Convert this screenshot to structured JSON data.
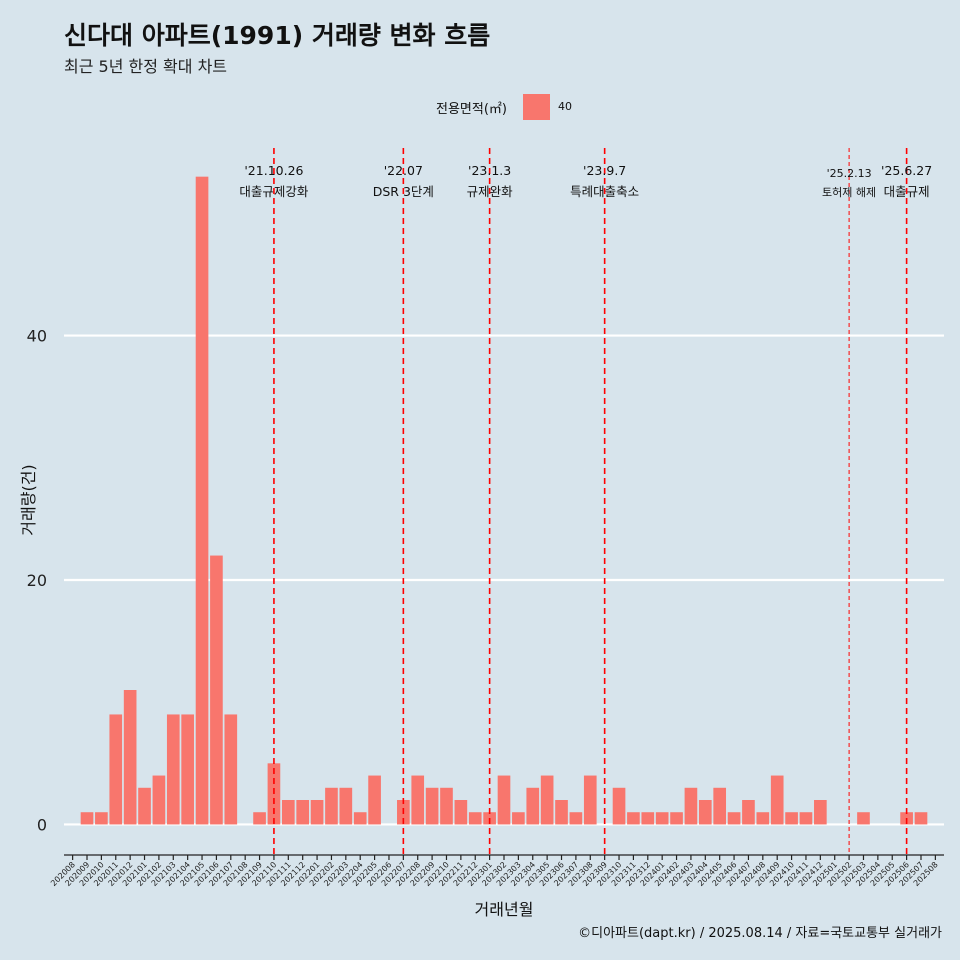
{
  "chart_data": {
    "type": "bar",
    "title": "신다대 아파트(1991) 거래량 변화 흐름",
    "subtitle": "최근 5년 한정 확대 차트",
    "xlabel": "거래년월",
    "ylabel": "거래량(건)",
    "ylim": [
      -2.5,
      56
    ],
    "yticks": [
      0,
      20,
      40
    ],
    "grid": "horizontal major lines only",
    "legend": {
      "title": "전용면적(㎡)",
      "entries": [
        "40"
      ],
      "position": "top"
    },
    "colors": {
      "bar": "#f8766d",
      "event_line": "#ff0000",
      "background": "#d7e4ec",
      "grid": "#ffffff"
    },
    "caption": "©디아파트(dapt.kr) / 2025.08.14 / 자료=국토교통부 실거래가",
    "series": [
      {
        "name": "40",
        "categories": [
          "202008",
          "202009",
          "202010",
          "202011",
          "202012",
          "202101",
          "202102",
          "202103",
          "202104",
          "202105",
          "202106",
          "202107",
          "202108",
          "202109",
          "202110",
          "202111",
          "202112",
          "202201",
          "202202",
          "202203",
          "202204",
          "202205",
          "202206",
          "202207",
          "202208",
          "202209",
          "202210",
          "202211",
          "202212",
          "202301",
          "202302",
          "202303",
          "202304",
          "202305",
          "202306",
          "202307",
          "202308",
          "202309",
          "202310",
          "202311",
          "202312",
          "202401",
          "202402",
          "202403",
          "202404",
          "202405",
          "202406",
          "202407",
          "202408",
          "202409",
          "202410",
          "202411",
          "202412",
          "202501",
          "202502",
          "202503",
          "202504",
          "202505",
          "202506",
          "202507",
          "202508"
        ],
        "values": [
          0,
          1,
          1,
          9,
          11,
          3,
          4,
          9,
          9,
          53,
          22,
          9,
          0,
          1,
          5,
          2,
          2,
          2,
          3,
          3,
          1,
          4,
          0,
          2,
          4,
          3,
          3,
          2,
          1,
          1,
          4,
          1,
          3,
          4,
          2,
          1,
          4,
          0,
          3,
          1,
          1,
          1,
          1,
          3,
          2,
          3,
          1,
          2,
          1,
          4,
          1,
          1,
          2,
          0,
          0,
          1,
          0,
          0,
          1,
          1,
          0
        ]
      }
    ],
    "events": [
      {
        "category": "202110",
        "date": "'21.10.26",
        "label": "대출규제강화",
        "style": "dashed"
      },
      {
        "category": "202207",
        "date": "'22.07",
        "label": "DSR 3단계",
        "style": "dashed"
      },
      {
        "category": "202301",
        "date": "'23.1.3",
        "label": "규제완화",
        "style": "dashed"
      },
      {
        "category": "202309",
        "date": "'23.9.7",
        "label": "특례대출축소",
        "style": "dashed"
      },
      {
        "category": "202502",
        "date": "'25.2.13",
        "label": "토허제 해제",
        "style": "thin-dashed"
      },
      {
        "category": "202506",
        "date": "'25.6.27",
        "label": "대출규제",
        "style": "dashed"
      }
    ]
  }
}
